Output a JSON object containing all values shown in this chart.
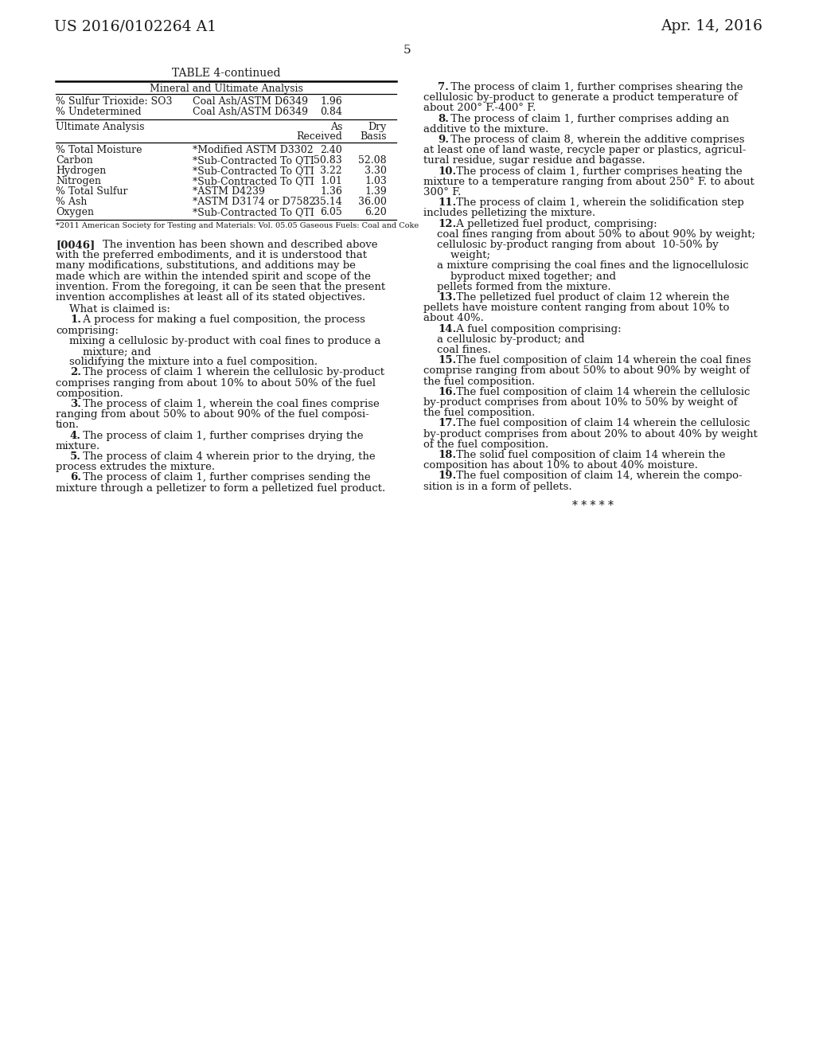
{
  "bg": "#ffffff",
  "page_num": "5",
  "hdr_left": "US 2016/0102264 A1",
  "hdr_right": "Apr. 14, 2016",
  "tbl_title": "TABLE 4-continued",
  "tbl_subtitle": "Mineral and Ultimate Analysis",
  "mineral_rows": [
    [
      "% Sulfur Trioxide: SO3",
      "Coal Ash/ASTM D6349",
      "1.96",
      ""
    ],
    [
      "% Undetermined",
      "Coal Ash/ASTM D6349",
      "0.84",
      ""
    ]
  ],
  "ultimate_rows": [
    [
      "% Total Moisture",
      "*Modified ASTM D3302",
      "2.40",
      ""
    ],
    [
      "Carbon",
      "*Sub-Contracted To QTI",
      "50.83",
      "52.08"
    ],
    [
      "Hydrogen",
      "*Sub-Contracted To QTI",
      "3.22",
      "3.30"
    ],
    [
      "Nitrogen",
      "*Sub-Contracted To QTI",
      "1.01",
      "1.03"
    ],
    [
      "% Total Sulfur",
      "*ASTM D4239",
      "1.36",
      "1.39"
    ],
    [
      "% Ash",
      "*ASTM D3174 or D7582",
      "35.14",
      "36.00"
    ],
    [
      "Oxygen",
      "*Sub-Contracted To QTI",
      "6.05",
      "6.20"
    ]
  ],
  "footnote": "*2011 American Society for Testing and Materials: Vol. 05.05 Gaseous Fuels: Coal and Coke",
  "para_0046_lines": [
    "[0046]    The invention has been shown and described above",
    "with the preferred embodiments, and it is understood that",
    "many modifications, substitutions, and additions may be",
    "made which are within the intended spirit and scope of the",
    "invention. From the foregoing, it can be seen that the present",
    "invention accomplishes at least all of its stated objectives."
  ],
  "what_claimed": "    What is claimed is:",
  "left_claims": [
    {
      "lines": [
        "    1. A process for making a fuel composition, the process",
        "comprising:"
      ],
      "sub": [
        "    mixing a cellulosic by-product with coal fines to produce a",
        "        mixture; and",
        "    solidifying the mixture into a fuel composition."
      ]
    },
    {
      "lines": [
        "    2. The process of claim 1 wherein the cellulosic by-product",
        "comprises ranging from about 10% to about 50% of the fuel",
        "composition."
      ]
    },
    {
      "lines": [
        "    3. The process of claim 1, wherein the coal fines comprise",
        "ranging from about 50% to about 90% of the fuel composi-",
        "tion."
      ]
    },
    {
      "lines": [
        "    4. The process of claim 1, further comprises drying the",
        "mixture."
      ]
    },
    {
      "lines": [
        "    5. The process of claim 4 wherein prior to the drying, the",
        "process extrudes the mixture."
      ]
    },
    {
      "lines": [
        "    6. The process of claim 1, further comprises sending the",
        "mixture through a pelletizer to form a pelletized fuel product."
      ]
    }
  ],
  "right_claims": [
    {
      "lines": [
        "    7. The process of claim 1, further comprises shearing the",
        "cellulosic by-product to generate a product temperature of",
        "about 200° F.-400° F."
      ]
    },
    {
      "lines": [
        "    8. The process of claim 1, further comprises adding an",
        "additive to the mixture."
      ]
    },
    {
      "lines": [
        "    9. The process of claim 8, wherein the additive comprises",
        "at least one of land waste, recycle paper or plastics, agricul-",
        "tural residue, sugar residue and bagasse."
      ]
    },
    {
      "lines": [
        "    10. The process of claim 1, further comprises heating the",
        "mixture to a temperature ranging from about 250° F. to about",
        "300° F."
      ]
    },
    {
      "lines": [
        "    11. The process of claim 1, wherein the solidification step",
        "includes pelletizing the mixture."
      ]
    },
    {
      "lines": [
        "    12. A pelletized fuel product, comprising:"
      ],
      "sub": [
        "    coal fines ranging from about 50% to about 90% by weight;",
        "    cellulosic by-product ranging from about  10-50% by",
        "        weight;",
        "    a mixture comprising the coal fines and the lignocellulosic",
        "        byproduct mixed together; and",
        "    pellets formed from the mixture."
      ]
    },
    {
      "lines": [
        "    13. The pelletized fuel product of claim 12 wherein the",
        "pellets have moisture content ranging from about 10% to",
        "about 40%."
      ]
    },
    {
      "lines": [
        "    14. A fuel composition comprising:"
      ],
      "sub": [
        "    a cellulosic by-product; and",
        "    coal fines."
      ]
    },
    {
      "lines": [
        "    15. The fuel composition of claim 14 wherein the coal fines",
        "comprise ranging from about 50% to about 90% by weight of",
        "the fuel composition."
      ]
    },
    {
      "lines": [
        "    16. The fuel composition of claim 14 wherein the cellulosic",
        "by-product comprises from about 10% to 50% by weight of",
        "the fuel composition."
      ]
    },
    {
      "lines": [
        "    17. The fuel composition of claim 14 wherein the cellulosic",
        "by-product comprises from about 20% to about 40% by weight",
        "of the fuel composition."
      ]
    },
    {
      "lines": [
        "    18. The solid fuel composition of claim 14 wherein the",
        "composition has about 10% to about 40% moisture."
      ]
    },
    {
      "lines": [
        "    19. The fuel composition of claim 14, wherein the compo-",
        "sition is in a form of pellets."
      ]
    }
  ],
  "footer": "* * * * *",
  "bold_numbers": [
    "1",
    "2",
    "3",
    "4",
    "5",
    "6",
    "7",
    "8",
    "9",
    "10",
    "11",
    "12",
    "13",
    "14",
    "15",
    "16",
    "17",
    "18",
    "19"
  ]
}
